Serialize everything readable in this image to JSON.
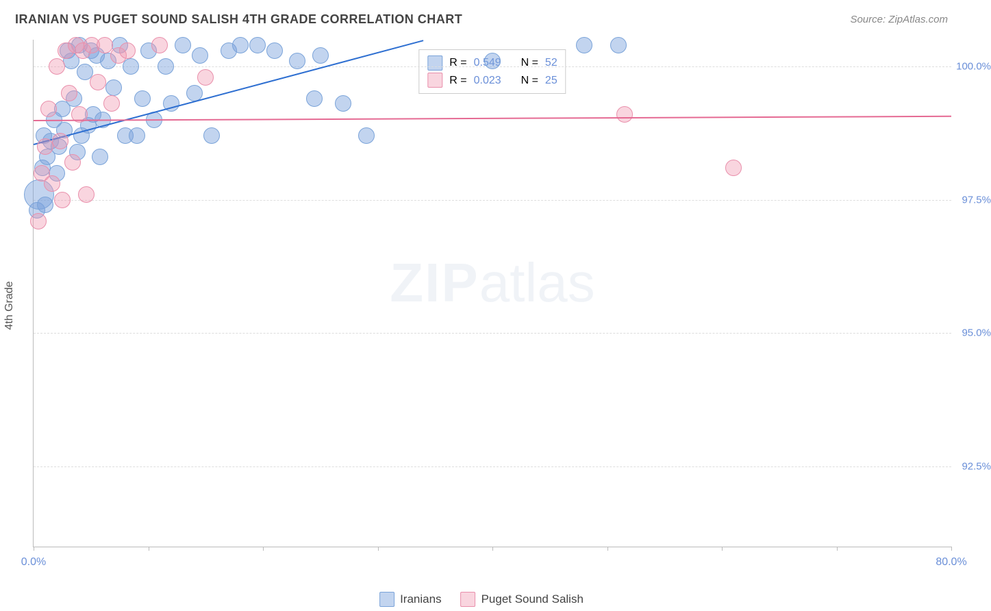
{
  "header": {
    "title": "IRANIAN VS PUGET SOUND SALISH 4TH GRADE CORRELATION CHART",
    "source": "Source: ZipAtlas.com"
  },
  "watermark": {
    "bold": "ZIP",
    "rest": "atlas"
  },
  "chart": {
    "type": "scatter",
    "ylabel": "4th Grade",
    "background_color": "#ffffff",
    "grid_color": "#dddddd",
    "axis_color": "#bbbbbb",
    "label_color": "#6a8fd8",
    "xlim": [
      0,
      80
    ],
    "ylim": [
      91,
      100.5
    ],
    "xticks": [
      0,
      10,
      20,
      30,
      40,
      50,
      60,
      70,
      80
    ],
    "xtick_labels": {
      "0": "0.0%",
      "80": "80.0%"
    },
    "yticks": [
      92.5,
      95.0,
      97.5,
      100.0
    ],
    "ytick_labels": [
      "92.5%",
      "95.0%",
      "97.5%",
      "100.0%"
    ],
    "series": [
      {
        "name": "Iranians",
        "fill": "rgba(120,160,220,0.45)",
        "stroke": "#7aa3d9",
        "trend_color": "#2e6fd1",
        "trend": {
          "x1": 0,
          "y1": 98.55,
          "x2": 34,
          "y2": 100.5
        },
        "stats": {
          "R_label": "R =",
          "R": "0.549",
          "N_label": "N =",
          "N": "52"
        },
        "marker_radius": 12,
        "points": [
          [
            0.3,
            97.3
          ],
          [
            0.5,
            97.6,
            22
          ],
          [
            0.8,
            98.1
          ],
          [
            0.9,
            98.7
          ],
          [
            1.0,
            97.4
          ],
          [
            1.2,
            98.3
          ],
          [
            1.5,
            98.6
          ],
          [
            1.8,
            99.0
          ],
          [
            2.0,
            98.0
          ],
          [
            2.2,
            98.5
          ],
          [
            2.5,
            99.2
          ],
          [
            2.7,
            98.8
          ],
          [
            3.0,
            100.3
          ],
          [
            3.3,
            100.1
          ],
          [
            3.5,
            99.4
          ],
          [
            3.8,
            98.4
          ],
          [
            4.0,
            100.4
          ],
          [
            4.2,
            98.7
          ],
          [
            4.5,
            99.9
          ],
          [
            4.8,
            98.9
          ],
          [
            5.0,
            100.3
          ],
          [
            5.2,
            99.1
          ],
          [
            5.5,
            100.2
          ],
          [
            5.8,
            98.3
          ],
          [
            6.0,
            99.0
          ],
          [
            6.5,
            100.1
          ],
          [
            7.0,
            99.6
          ],
          [
            7.5,
            100.4
          ],
          [
            8.0,
            98.7
          ],
          [
            8.5,
            100.0
          ],
          [
            9.0,
            98.7
          ],
          [
            9.5,
            99.4
          ],
          [
            10.0,
            100.3
          ],
          [
            10.5,
            99.0
          ],
          [
            11.5,
            100.0
          ],
          [
            12.0,
            99.3
          ],
          [
            13.0,
            100.4
          ],
          [
            14.0,
            99.5
          ],
          [
            14.5,
            100.2
          ],
          [
            15.5,
            98.7
          ],
          [
            17.0,
            100.3
          ],
          [
            18.0,
            100.4
          ],
          [
            19.5,
            100.4
          ],
          [
            21.0,
            100.3
          ],
          [
            23.0,
            100.1
          ],
          [
            24.5,
            99.4
          ],
          [
            25.0,
            100.2
          ],
          [
            27.0,
            99.3
          ],
          [
            29.0,
            98.7
          ],
          [
            40.0,
            100.1
          ],
          [
            48.0,
            100.4
          ],
          [
            51.0,
            100.4
          ]
        ]
      },
      {
        "name": "Puget Sound Salish",
        "fill": "rgba(240,150,175,0.40)",
        "stroke": "#e98fab",
        "trend_color": "#e56a93",
        "trend": {
          "x1": 0,
          "y1": 99.0,
          "x2": 80,
          "y2": 99.08
        },
        "stats": {
          "R_label": "R =",
          "R": "0.023",
          "N_label": "N =",
          "N": "25"
        },
        "marker_radius": 12,
        "points": [
          [
            0.4,
            97.1
          ],
          [
            0.7,
            98.0
          ],
          [
            1.0,
            98.5
          ],
          [
            1.3,
            99.2
          ],
          [
            1.6,
            97.8
          ],
          [
            2.0,
            100.0
          ],
          [
            2.3,
            98.6
          ],
          [
            2.5,
            97.5
          ],
          [
            2.8,
            100.3
          ],
          [
            3.1,
            99.5
          ],
          [
            3.4,
            98.2
          ],
          [
            3.7,
            100.4
          ],
          [
            4.0,
            99.1
          ],
          [
            4.3,
            100.3
          ],
          [
            4.6,
            97.6
          ],
          [
            5.1,
            100.4
          ],
          [
            5.6,
            99.7
          ],
          [
            6.2,
            100.4
          ],
          [
            6.8,
            99.3
          ],
          [
            7.4,
            100.2
          ],
          [
            8.2,
            100.3
          ],
          [
            11.0,
            100.4
          ],
          [
            15.0,
            99.8
          ],
          [
            51.5,
            99.1
          ],
          [
            61.0,
            98.1
          ]
        ]
      }
    ]
  },
  "legend_bottom": [
    "Iranians",
    "Puget Sound Salish"
  ]
}
